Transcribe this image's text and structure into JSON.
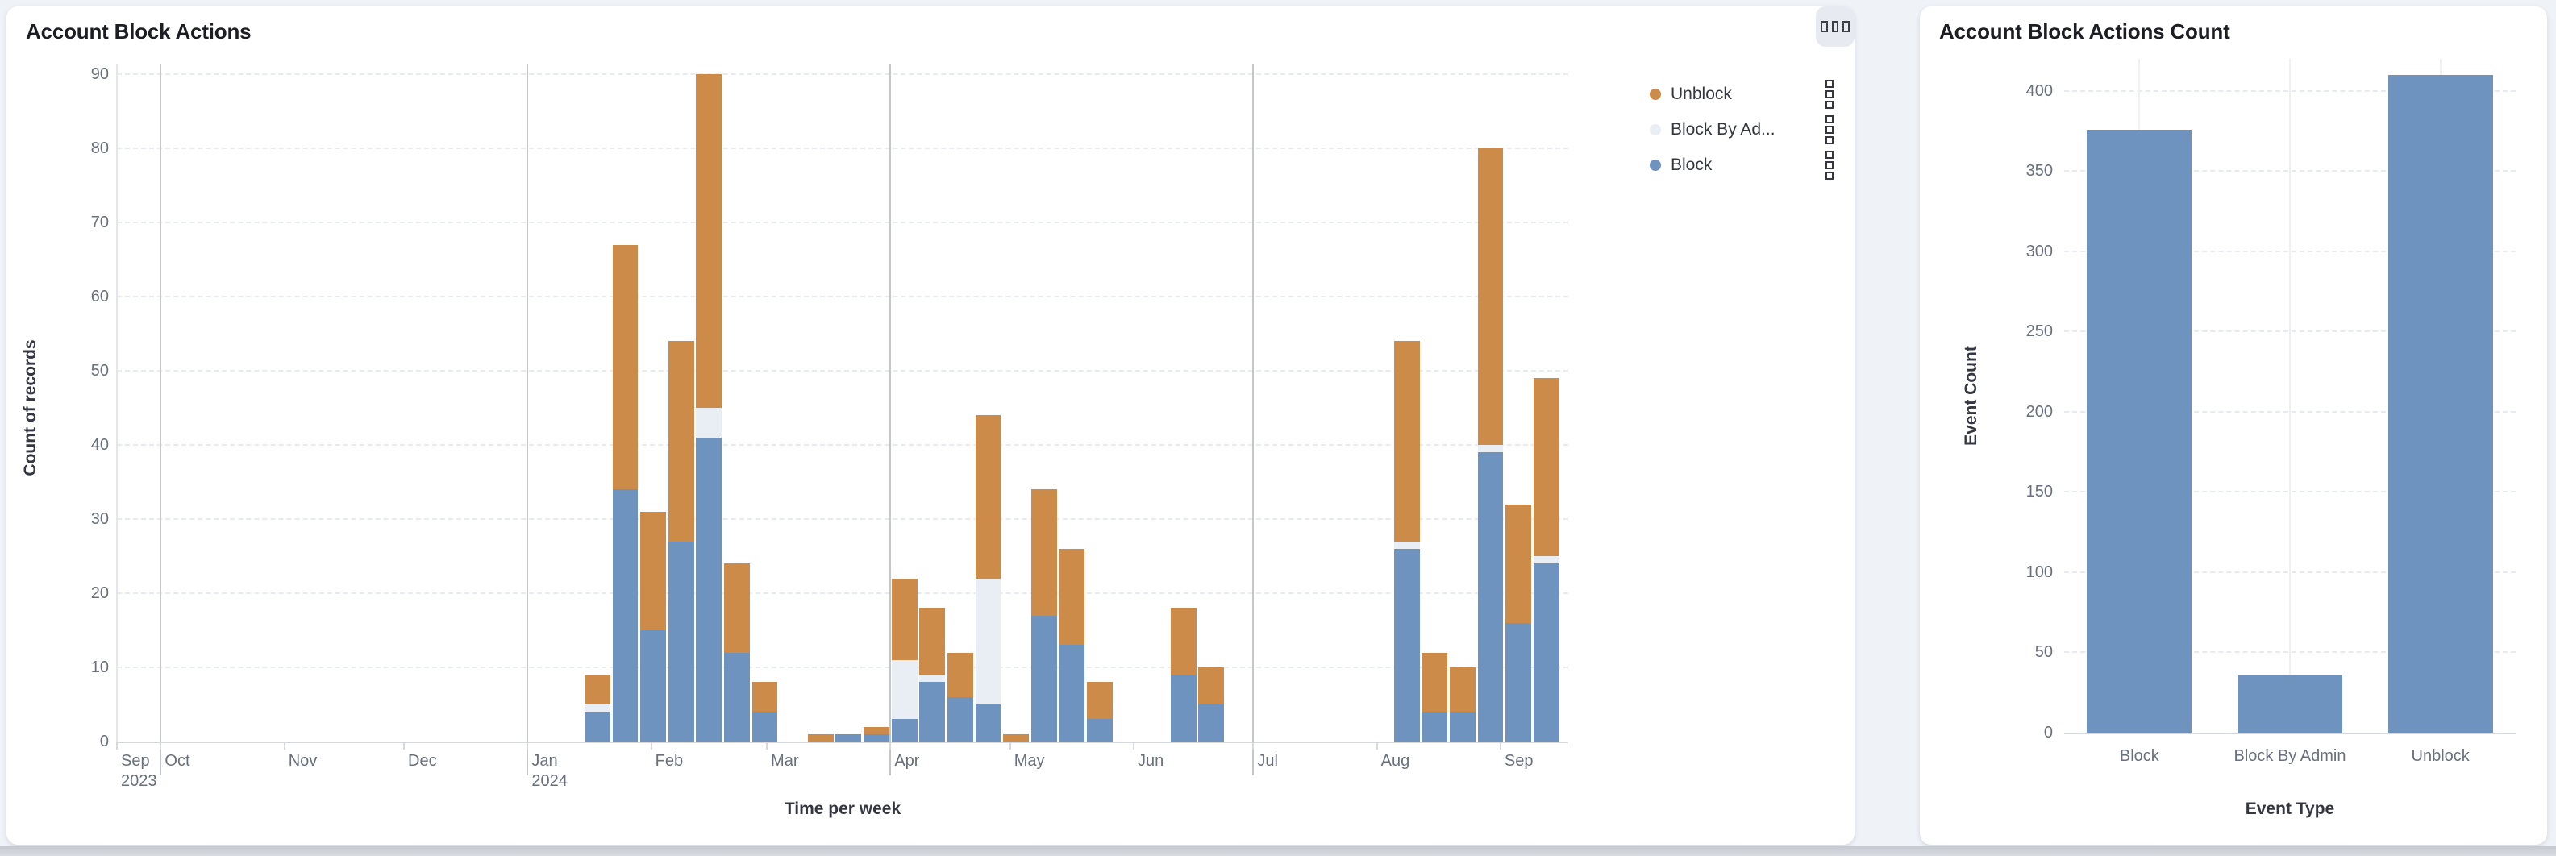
{
  "left_panel": {
    "title": "Account Block Actions",
    "x_axis_title": "Time per week",
    "y_axis_title": "Count of records",
    "corner_button": {
      "icon": "three-squares-icon"
    },
    "legend": {
      "position": "right",
      "items": [
        {
          "label": "Unblock",
          "color_key": "unblock"
        },
        {
          "label": "Block By Ad...",
          "color_key": "block_by_admin"
        },
        {
          "label": "Block",
          "color_key": "block"
        }
      ]
    }
  },
  "right_panel": {
    "title": "Account Block Actions Count",
    "x_axis_title": "Event Type",
    "y_axis_title": "Event Count"
  },
  "colors": {
    "unblock": "#cd8b4a",
    "block": "#6e93be",
    "block_by_admin": "#e9edf4",
    "page_bg": "#eff2f7",
    "panel_bg": "#ffffff",
    "grid": "#e7eaef",
    "quarter_line": "#c3c6cc",
    "axis_line": "#d5d8dd",
    "tick_text": "#69707d",
    "axis_title_text": "#343741",
    "title_text": "#1c1e24"
  },
  "chart_data": [
    {
      "type": "bar",
      "stacked": true,
      "title": "Account Block Actions",
      "xlabel": "Time per week",
      "ylabel": "Count of records",
      "ylim": [
        0,
        90
      ],
      "yticks": [
        0,
        10,
        20,
        30,
        40,
        50,
        60,
        70,
        80,
        90
      ],
      "grid": true,
      "legend_position": "right",
      "x_range": [
        "2023-09-20",
        "2024-09-18"
      ],
      "quarter_lines": [
        "2023-10-01",
        "2024-01-01",
        "2024-04-01",
        "2024-07-01"
      ],
      "months": [
        {
          "date": "2023-09-20",
          "lines": [
            "Sep",
            "2023"
          ]
        },
        {
          "date": "2023-10-01",
          "lines": [
            "Oct"
          ]
        },
        {
          "date": "2023-11-01",
          "lines": [
            "Nov"
          ]
        },
        {
          "date": "2023-12-01",
          "lines": [
            "Dec"
          ]
        },
        {
          "date": "2024-01-01",
          "lines": [
            "Jan",
            "2024"
          ]
        },
        {
          "date": "2024-02-01",
          "lines": [
            "Feb"
          ]
        },
        {
          "date": "2024-03-01",
          "lines": [
            "Mar"
          ]
        },
        {
          "date": "2024-04-01",
          "lines": [
            "Apr"
          ]
        },
        {
          "date": "2024-05-01",
          "lines": [
            "May"
          ]
        },
        {
          "date": "2024-06-01",
          "lines": [
            "Jun"
          ]
        },
        {
          "date": "2024-07-01",
          "lines": [
            "Jul"
          ]
        },
        {
          "date": "2024-08-01",
          "lines": [
            "Aug"
          ]
        },
        {
          "date": "2024-09-01",
          "lines": [
            "Sep"
          ]
        }
      ],
      "series_order": [
        "block",
        "block_by_admin",
        "unblock"
      ],
      "series_names": {
        "block": "Block",
        "block_by_admin": "Block By Admin",
        "unblock": "Unblock"
      },
      "weeks": [
        {
          "date": "2024-01-15",
          "block": 4,
          "block_by_admin": 1,
          "unblock": 4
        },
        {
          "date": "2024-01-22",
          "block": 34,
          "block_by_admin": 0,
          "unblock": 33
        },
        {
          "date": "2024-01-29",
          "block": 15,
          "block_by_admin": 0,
          "unblock": 16
        },
        {
          "date": "2024-02-05",
          "block": 27,
          "block_by_admin": 0,
          "unblock": 27
        },
        {
          "date": "2024-02-12",
          "block": 41,
          "block_by_admin": 4,
          "unblock": 45
        },
        {
          "date": "2024-02-19",
          "block": 12,
          "block_by_admin": 0,
          "unblock": 12
        },
        {
          "date": "2024-02-26",
          "block": 4,
          "block_by_admin": 0,
          "unblock": 4
        },
        {
          "date": "2024-03-11",
          "block": 0,
          "block_by_admin": 0,
          "unblock": 1
        },
        {
          "date": "2024-03-18",
          "block": 1,
          "block_by_admin": 0,
          "unblock": 0
        },
        {
          "date": "2024-03-25",
          "block": 1,
          "block_by_admin": 0,
          "unblock": 1
        },
        {
          "date": "2024-04-01",
          "block": 3,
          "block_by_admin": 8,
          "unblock": 11
        },
        {
          "date": "2024-04-08",
          "block": 8,
          "block_by_admin": 1,
          "unblock": 9
        },
        {
          "date": "2024-04-15",
          "block": 6,
          "block_by_admin": 0,
          "unblock": 6
        },
        {
          "date": "2024-04-22",
          "block": 5,
          "block_by_admin": 17,
          "unblock": 22
        },
        {
          "date": "2024-04-29",
          "block": 0,
          "block_by_admin": 0,
          "unblock": 1
        },
        {
          "date": "2024-05-06",
          "block": 17,
          "block_by_admin": 0,
          "unblock": 17
        },
        {
          "date": "2024-05-13",
          "block": 13,
          "block_by_admin": 0,
          "unblock": 13
        },
        {
          "date": "2024-05-20",
          "block": 3,
          "block_by_admin": 0,
          "unblock": 5
        },
        {
          "date": "2024-06-10",
          "block": 9,
          "block_by_admin": 0,
          "unblock": 9
        },
        {
          "date": "2024-06-17",
          "block": 5,
          "block_by_admin": 0,
          "unblock": 5
        },
        {
          "date": "2024-08-05",
          "block": 26,
          "block_by_admin": 1,
          "unblock": 27
        },
        {
          "date": "2024-08-12",
          "block": 4,
          "block_by_admin": 0,
          "unblock": 8
        },
        {
          "date": "2024-08-19",
          "block": 4,
          "block_by_admin": 0,
          "unblock": 6
        },
        {
          "date": "2024-08-26",
          "block": 39,
          "block_by_admin": 1,
          "unblock": 40
        },
        {
          "date": "2024-09-02",
          "block": 16,
          "block_by_admin": 0,
          "unblock": 16
        },
        {
          "date": "2024-09-09",
          "block": 24,
          "block_by_admin": 1,
          "unblock": 24
        }
      ]
    },
    {
      "type": "bar",
      "title": "Account Block Actions Count",
      "xlabel": "Event Type",
      "ylabel": "Event Count",
      "categories": [
        "Block",
        "Block By Admin",
        "Unblock"
      ],
      "values": [
        376,
        36,
        410
      ],
      "ylim": [
        0,
        420
      ],
      "yticks": [
        0,
        50,
        100,
        150,
        200,
        250,
        300,
        350,
        400
      ],
      "grid": true,
      "legend_position": "none"
    }
  ]
}
